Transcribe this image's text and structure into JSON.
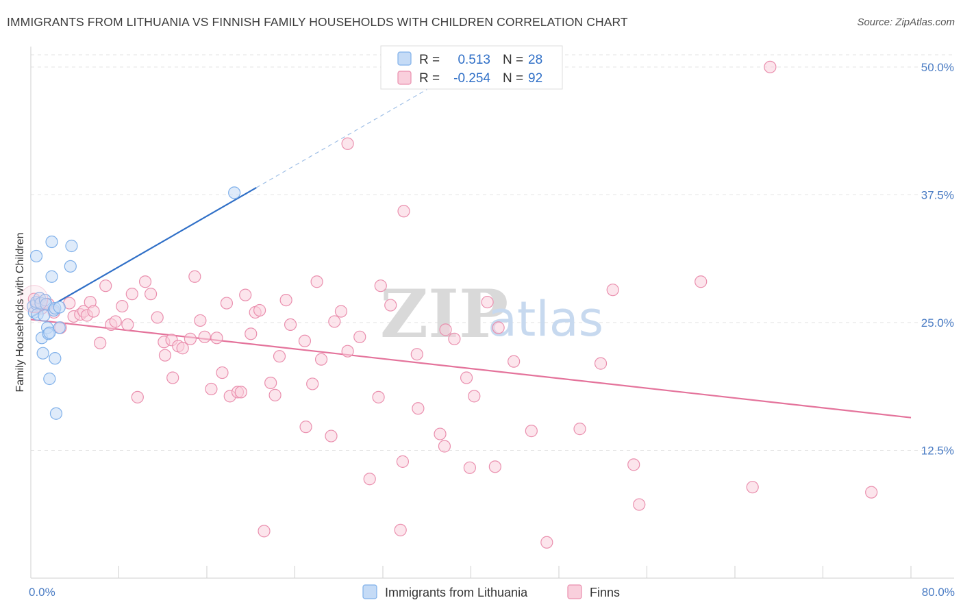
{
  "header": {
    "title": "IMMIGRANTS FROM LITHUANIA VS FINNISH FAMILY HOUSEHOLDS WITH CHILDREN CORRELATION CHART",
    "source": "Source: ZipAtlas.com"
  },
  "watermark": {
    "zip": "ZIP",
    "atlas": "atlas"
  },
  "chart_data": {
    "type": "scatter",
    "title": "IMMIGRANTS FROM LITHUANIA VS FINNISH FAMILY HOUSEHOLDS WITH CHILDREN CORRELATION CHART",
    "xlabel": "",
    "ylabel": "Family Households with Children",
    "xlim": [
      0,
      80
    ],
    "ylim": [
      0,
      52
    ],
    "x_tick_labels": [
      "0.0%",
      "80.0%"
    ],
    "y_ticks": [
      12.5,
      25.0,
      37.5,
      50.0
    ],
    "y_tick_labels": [
      "12.5%",
      "25.0%",
      "37.5%",
      "50.0%"
    ],
    "grid": true,
    "legend_position": "top-center",
    "legend": [
      {
        "name": "Immigrants from Lithuania",
        "r_label": "R =",
        "r": "0.513",
        "n_label": "N =",
        "n": "28",
        "color": "#7fb0ea",
        "fill": "#c5dbf6"
      },
      {
        "name": "Finns",
        "r_label": "R =",
        "r": "-0.254",
        "n_label": "N =",
        "n": "92",
        "color": "#ea8fae",
        "fill": "#f9cfdc"
      }
    ],
    "series": [
      {
        "name": "Immigrants from Lithuania",
        "color": "#7fb0ea",
        "trend": {
          "x0": 0,
          "y0": 25.5,
          "x1": 20.5,
          "y1": 38.2,
          "dash_x1": 36,
          "dash_y1": 47.8,
          "color": "#2f6fc7"
        },
        "points": [
          [
            0.2,
            26.6
          ],
          [
            0.3,
            26.0
          ],
          [
            0.5,
            26.8
          ],
          [
            0.5,
            27.0
          ],
          [
            0.6,
            25.8
          ],
          [
            0.8,
            27.4
          ],
          [
            0.9,
            26.9
          ],
          [
            1.0,
            23.5
          ],
          [
            1.1,
            22.0
          ],
          [
            1.2,
            25.7
          ],
          [
            1.3,
            27.2
          ],
          [
            1.4,
            26.8
          ],
          [
            1.5,
            24.5
          ],
          [
            1.6,
            23.9
          ],
          [
            1.7,
            24.0
          ],
          [
            1.7,
            19.5
          ],
          [
            1.9,
            29.5
          ],
          [
            1.9,
            32.9
          ],
          [
            2.1,
            26.2
          ],
          [
            2.2,
            26.4
          ],
          [
            2.2,
            21.5
          ],
          [
            2.3,
            16.1
          ],
          [
            2.6,
            26.5
          ],
          [
            2.6,
            24.5
          ],
          [
            3.6,
            30.5
          ],
          [
            3.7,
            32.5
          ],
          [
            0.5,
            31.5
          ],
          [
            18.5,
            37.7
          ]
        ]
      },
      {
        "name": "Finns",
        "color": "#ea8fae",
        "trend": {
          "x0": 0,
          "y0": 25.3,
          "x1": 80,
          "y1": 15.7,
          "color": "#e4739b"
        },
        "points": [
          [
            0.3,
            27.3
          ],
          [
            1.0,
            26.4
          ],
          [
            1.6,
            26.8
          ],
          [
            2.1,
            26.0
          ],
          [
            2.7,
            24.5
          ],
          [
            3.5,
            26.9
          ],
          [
            3.9,
            25.6
          ],
          [
            4.5,
            25.8
          ],
          [
            4.8,
            26.1
          ],
          [
            5.1,
            25.7
          ],
          [
            5.4,
            27.0
          ],
          [
            5.7,
            26.1
          ],
          [
            6.3,
            23.0
          ],
          [
            6.8,
            28.6
          ],
          [
            7.3,
            24.8
          ],
          [
            7.7,
            25.1
          ],
          [
            8.3,
            26.6
          ],
          [
            8.8,
            24.8
          ],
          [
            9.2,
            27.8
          ],
          [
            9.7,
            17.7
          ],
          [
            10.4,
            29.0
          ],
          [
            10.9,
            27.8
          ],
          [
            11.5,
            25.5
          ],
          [
            12.1,
            23.1
          ],
          [
            12.2,
            21.8
          ],
          [
            12.8,
            23.3
          ],
          [
            12.9,
            19.6
          ],
          [
            13.4,
            22.7
          ],
          [
            13.8,
            22.5
          ],
          [
            14.5,
            23.4
          ],
          [
            14.9,
            29.5
          ],
          [
            15.4,
            25.2
          ],
          [
            15.8,
            23.6
          ],
          [
            16.4,
            18.5
          ],
          [
            16.9,
            23.5
          ],
          [
            17.4,
            20.1
          ],
          [
            17.8,
            26.9
          ],
          [
            18.1,
            17.8
          ],
          [
            18.8,
            18.2
          ],
          [
            19.1,
            18.2
          ],
          [
            19.5,
            27.7
          ],
          [
            20.0,
            23.9
          ],
          [
            20.4,
            26.0
          ],
          [
            20.8,
            26.2
          ],
          [
            21.2,
            4.6
          ],
          [
            21.8,
            19.1
          ],
          [
            22.2,
            17.9
          ],
          [
            22.6,
            21.7
          ],
          [
            23.2,
            27.2
          ],
          [
            23.6,
            24.8
          ],
          [
            24.9,
            23.2
          ],
          [
            25.0,
            14.8
          ],
          [
            25.6,
            19.0
          ],
          [
            26.0,
            29.0
          ],
          [
            26.4,
            21.4
          ],
          [
            27.3,
            13.9
          ],
          [
            27.6,
            25.1
          ],
          [
            28.2,
            26.1
          ],
          [
            28.8,
            42.5
          ],
          [
            28.8,
            22.2
          ],
          [
            29.9,
            23.6
          ],
          [
            30.8,
            9.7
          ],
          [
            31.6,
            17.7
          ],
          [
            31.8,
            28.6
          ],
          [
            32.7,
            26.7
          ],
          [
            33.6,
            4.7
          ],
          [
            33.8,
            11.4
          ],
          [
            33.9,
            35.9
          ],
          [
            35.1,
            21.9
          ],
          [
            35.2,
            16.6
          ],
          [
            37.2,
            14.1
          ],
          [
            37.6,
            12.9
          ],
          [
            37.7,
            24.3
          ],
          [
            38.5,
            23.4
          ],
          [
            39.6,
            19.6
          ],
          [
            39.9,
            10.8
          ],
          [
            40.3,
            17.8
          ],
          [
            41.5,
            27.0
          ],
          [
            42.2,
            10.9
          ],
          [
            42.5,
            24.5
          ],
          [
            43.9,
            21.2
          ],
          [
            45.5,
            14.4
          ],
          [
            46.9,
            3.5
          ],
          [
            49.9,
            14.6
          ],
          [
            51.8,
            21.0
          ],
          [
            52.9,
            28.2
          ],
          [
            54.8,
            11.1
          ],
          [
            55.3,
            7.2
          ],
          [
            60.9,
            29.0
          ],
          [
            65.6,
            8.9
          ],
          [
            67.2,
            50.0
          ],
          [
            76.4,
            8.4
          ]
        ]
      }
    ]
  }
}
